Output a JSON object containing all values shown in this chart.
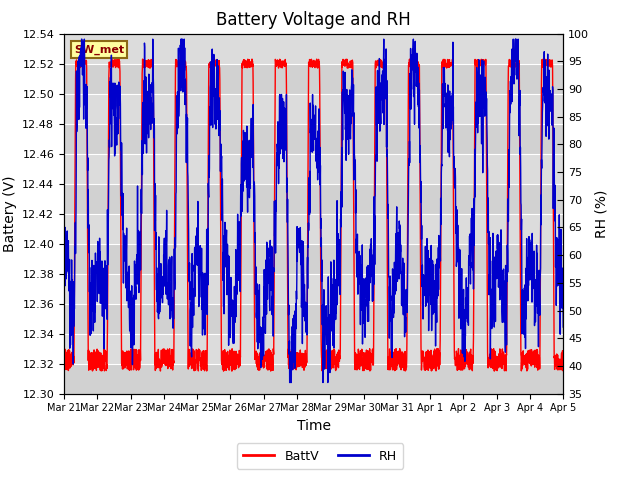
{
  "title": "Battery Voltage and RH",
  "xlabel": "Time",
  "ylabel_left": "Battery (V)",
  "ylabel_right": "RH (%)",
  "ylim_left": [
    12.3,
    12.54
  ],
  "ylim_right": [
    35,
    100
  ],
  "yticks_left": [
    12.3,
    12.32,
    12.34,
    12.36,
    12.38,
    12.4,
    12.42,
    12.44,
    12.46,
    12.48,
    12.5,
    12.52,
    12.54
  ],
  "yticks_right": [
    35,
    40,
    45,
    50,
    55,
    60,
    65,
    70,
    75,
    80,
    85,
    90,
    95,
    100
  ],
  "xtick_labels": [
    "Mar 21",
    "Mar 22",
    "Mar 23",
    "Mar 24",
    "Mar 25",
    "Mar 26",
    "Mar 27",
    "Mar 28",
    "Mar 29",
    "Mar 30",
    "Mar 31",
    "Apr 1",
    "Apr 2",
    "Apr 3",
    "Apr 4",
    "Apr 5"
  ],
  "color_batt": "#FF0000",
  "color_rh": "#0000CC",
  "legend_label_batt": "BattV",
  "legend_label_rh": "RH",
  "station_label": "SW_met",
  "bg_color": "#DCDCDC",
  "fig_bg_color": "#FFFFFF",
  "title_fontsize": 12,
  "axis_label_fontsize": 10,
  "tick_fontsize": 8,
  "n_days": 15,
  "batt_high": 12.52,
  "batt_low": 12.32,
  "rh_high": 95,
  "rh_low": 40
}
